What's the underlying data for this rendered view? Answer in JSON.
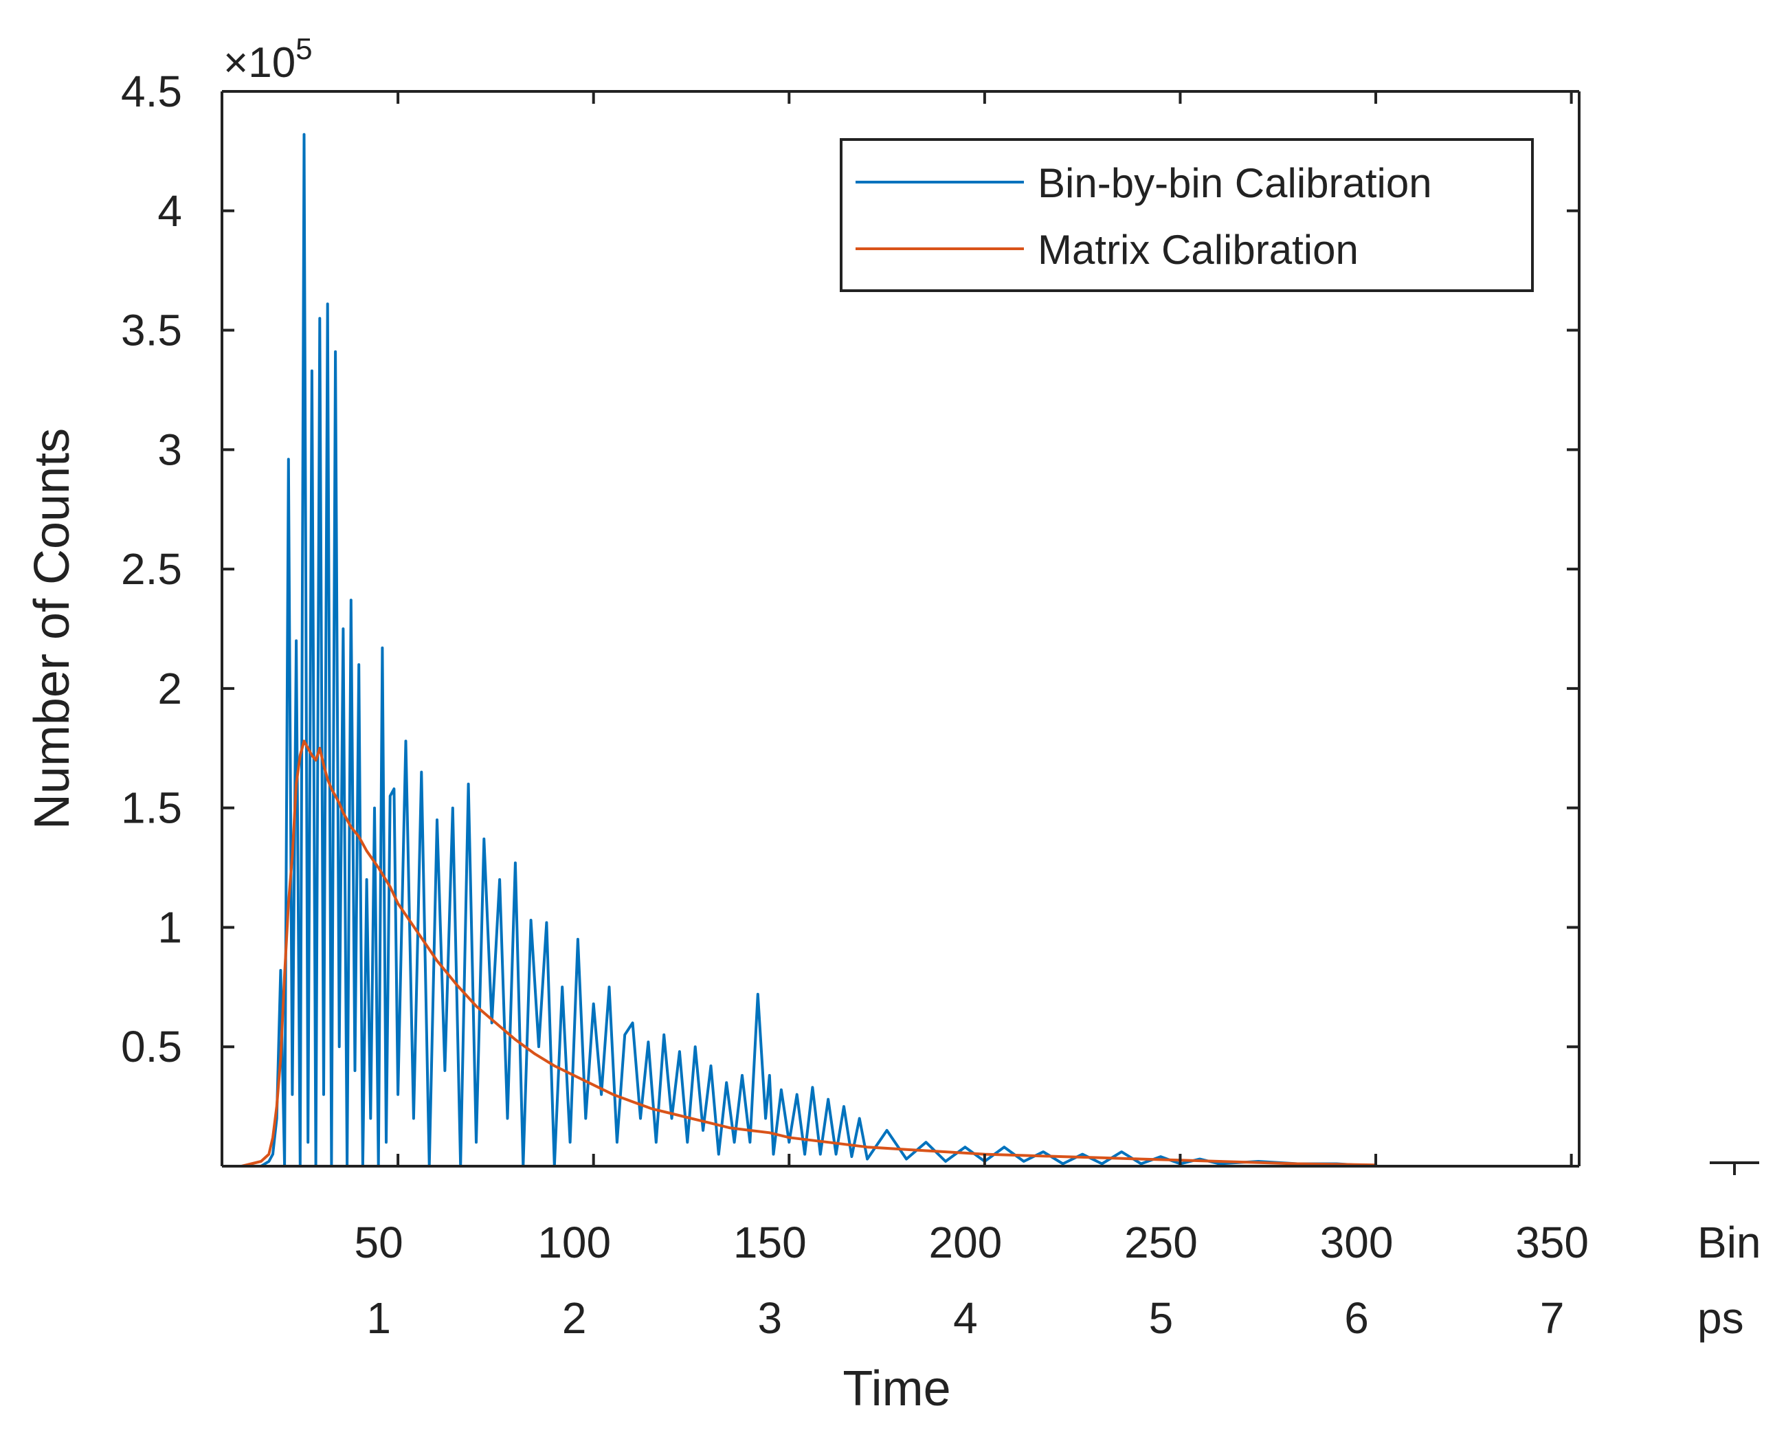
{
  "chart_data": {
    "type": "line",
    "title": "",
    "xlabel": "Time",
    "ylabel": "Number of Counts",
    "y_exponent_label": "×10",
    "y_exponent_power": "5",
    "xlim": [
      5,
      352
    ],
    "ylim": [
      0,
      4.5
    ],
    "x_bin_ticks": [
      50,
      100,
      150,
      200,
      250,
      300,
      350
    ],
    "x_bin_tick_labels": [
      "50",
      "100",
      "150",
      "200",
      "250",
      "300",
      "350"
    ],
    "x_bin_unit": "Bin",
    "x_ps_tick_labels": [
      "1",
      "2",
      "3",
      "4",
      "5",
      "6",
      "7"
    ],
    "x_ps_unit": "ps",
    "y_ticks": [
      0.5,
      1,
      1.5,
      2,
      2.5,
      3,
      3.5,
      4,
      4.5
    ],
    "y_tick_labels": [
      "0.5",
      "1",
      "1.5",
      "2",
      "2.5",
      "3",
      "3.5",
      "4",
      "4.5"
    ],
    "legend": {
      "position": "top-right",
      "entries": [
        "Bin-by-bin Calibration",
        "Matrix Calibration"
      ]
    },
    "series": [
      {
        "name": "Bin-by-bin Calibration",
        "color": "#0072BD",
        "x": [
          5,
          10,
          15,
          17,
          18,
          19,
          20,
          21,
          22,
          23,
          24,
          25,
          26,
          27,
          28,
          29,
          30,
          31,
          32,
          33,
          34,
          35,
          36,
          37,
          38,
          39,
          40,
          41,
          42,
          43,
          44,
          45,
          46,
          47,
          48,
          49,
          50,
          52,
          54,
          56,
          58,
          60,
          62,
          64,
          66,
          68,
          70,
          72,
          74,
          76,
          78,
          80,
          82,
          84,
          86,
          88,
          90,
          92,
          94,
          96,
          98,
          100,
          102,
          104,
          106,
          108,
          110,
          112,
          114,
          116,
          118,
          120,
          122,
          124,
          126,
          128,
          130,
          132,
          134,
          136,
          138,
          140,
          142,
          144,
          145,
          146,
          148,
          150,
          152,
          154,
          156,
          158,
          160,
          162,
          164,
          166,
          168,
          170,
          175,
          180,
          185,
          190,
          195,
          200,
          205,
          210,
          215,
          220,
          225,
          230,
          235,
          240,
          245,
          250,
          255,
          260,
          270,
          280,
          290,
          300
        ],
        "y": [
          0,
          0,
          0,
          0.02,
          0.05,
          0.2,
          0.82,
          0,
          2.96,
          0.3,
          2.2,
          0,
          4.32,
          0.1,
          3.33,
          0,
          3.55,
          0.3,
          3.61,
          0,
          3.41,
          0.5,
          2.25,
          0,
          2.37,
          0.4,
          2.1,
          0,
          1.2,
          0.2,
          1.5,
          0,
          2.17,
          0.1,
          1.55,
          1.58,
          0.3,
          1.78,
          0.2,
          1.65,
          0,
          1.45,
          0.4,
          1.5,
          0,
          1.6,
          0.1,
          1.37,
          0.6,
          1.2,
          0.2,
          1.27,
          0,
          1.03,
          0.5,
          1.02,
          0,
          0.75,
          0.1,
          0.95,
          0.2,
          0.68,
          0.3,
          0.75,
          0.1,
          0.55,
          0.6,
          0.2,
          0.52,
          0.1,
          0.55,
          0.2,
          0.48,
          0.1,
          0.5,
          0.15,
          0.42,
          0.05,
          0.35,
          0.1,
          0.38,
          0.1,
          0.72,
          0.2,
          0.38,
          0.05,
          0.32,
          0.1,
          0.3,
          0.05,
          0.33,
          0.05,
          0.28,
          0.05,
          0.25,
          0.04,
          0.2,
          0.03,
          0.15,
          0.03,
          0.1,
          0.02,
          0.08,
          0.02,
          0.08,
          0.02,
          0.06,
          0.01,
          0.05,
          0.01,
          0.06,
          0.01,
          0.04,
          0.01,
          0.03,
          0.01,
          0.02,
          0.01,
          0.01,
          0
        ]
      },
      {
        "name": "Matrix Calibration",
        "color": "#D95319",
        "x": [
          5,
          10,
          15,
          17,
          18,
          19,
          20,
          21,
          22,
          23,
          24,
          25,
          26,
          27,
          28,
          29,
          30,
          31,
          32,
          33,
          34,
          35,
          36,
          38,
          40,
          42,
          45,
          48,
          50,
          55,
          60,
          65,
          70,
          75,
          80,
          85,
          90,
          95,
          100,
          105,
          110,
          115,
          120,
          125,
          130,
          135,
          140,
          145,
          150,
          160,
          170,
          180,
          190,
          200,
          210,
          220,
          230,
          240,
          250,
          260,
          270,
          280,
          290,
          300
        ],
        "y": [
          0,
          0,
          0.02,
          0.05,
          0.12,
          0.25,
          0.45,
          0.8,
          1.1,
          1.3,
          1.6,
          1.72,
          1.78,
          1.75,
          1.72,
          1.7,
          1.75,
          1.68,
          1.62,
          1.58,
          1.55,
          1.52,
          1.48,
          1.42,
          1.38,
          1.32,
          1.25,
          1.17,
          1.1,
          0.98,
          0.86,
          0.76,
          0.67,
          0.6,
          0.53,
          0.47,
          0.42,
          0.38,
          0.34,
          0.3,
          0.27,
          0.24,
          0.22,
          0.2,
          0.18,
          0.16,
          0.15,
          0.14,
          0.12,
          0.1,
          0.08,
          0.07,
          0.06,
          0.05,
          0.045,
          0.04,
          0.035,
          0.03,
          0.025,
          0.02,
          0.015,
          0.01,
          0.008,
          0.005
        ]
      }
    ]
  }
}
